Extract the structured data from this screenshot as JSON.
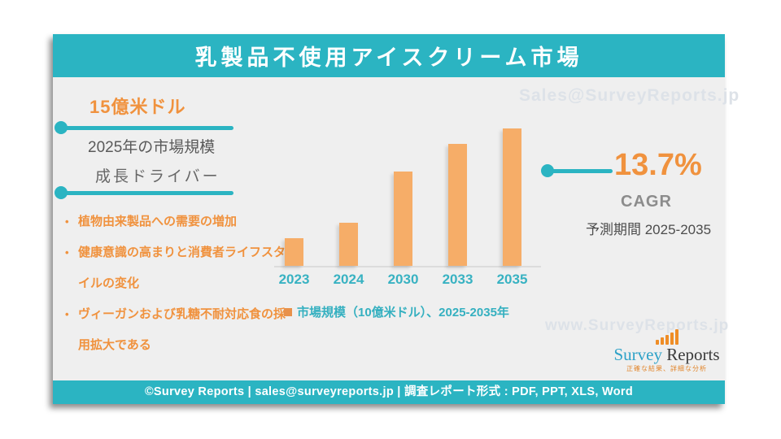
{
  "header": {
    "title": "乳製品不使用アイスクリーム市場"
  },
  "left_panel": {
    "market_value": "15億米ドル",
    "market_value_label": "2025年の市場規模",
    "drivers_title": "成長ドライバー",
    "drivers": [
      "植物由来製品への需要の増加",
      "健康意識の高まりと消費者ライフスタイルの変化",
      "ヴィーガンおよび乳糖不耐対応食の採用拡大である"
    ]
  },
  "cagr": {
    "value": "13.7%",
    "label": "CAGR",
    "period": "予測期間 2025-2035"
  },
  "watermarks": {
    "top": "Sales@SurveyReports.jp",
    "bottom": "www.SurveyReports.jp"
  },
  "logo": {
    "name_primary": "Survey",
    "name_secondary": " Reports",
    "tagline": "正確な結果、詳細な分析"
  },
  "footer": {
    "text": "©Survey Reports | sales@surveyreports.jp |  調査レポート形式 : PDF, PPT, XLS, Word"
  },
  "colors": {
    "teal": "#2bb4c2",
    "orange_text": "#f0923e",
    "bar_fill": "#f6ad68",
    "gray_text": "#5a5a5a",
    "watermark": "#dde2e8",
    "slide_background": "#efefef"
  },
  "chart_data": {
    "type": "bar",
    "categories": [
      "2023",
      "2024",
      "2030",
      "2033",
      "2035"
    ],
    "values": [
      1.1,
      1.7,
      3.7,
      4.8,
      5.4
    ],
    "legend": "市場規模（10億米ドル）、2025-2035年",
    "title": "",
    "xlabel": "",
    "ylabel": "",
    "ylim": [
      0,
      5.5
    ],
    "gridlines": false,
    "legend_position": "bottom",
    "bar_color": "#f6ad68",
    "tick_label_color": "#38b2c2"
  }
}
